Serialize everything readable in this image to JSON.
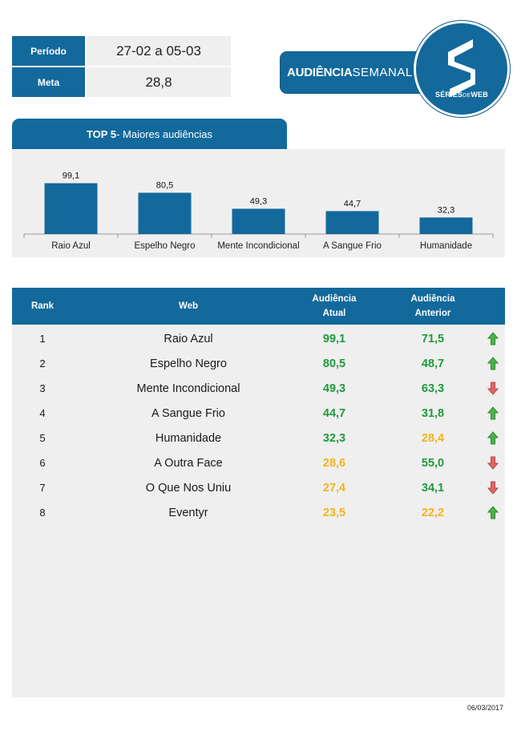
{
  "info": {
    "periodo_label": "Período",
    "periodo_value": "27-02 a 05-03",
    "meta_label": "Meta",
    "meta_value": "28,8"
  },
  "brand": {
    "title_bold": "AUDIÊNCIA",
    "title_thin": "SEMANAL",
    "logo_caption_bold": "SÉRIES",
    "logo_caption_thin": "DE",
    "logo_caption_end": "WEB"
  },
  "top5": {
    "title_bold": "TOP 5",
    "title_rest": " - Maiores audiências"
  },
  "chart_data": {
    "type": "bar",
    "categories": [
      "Raio Azul",
      "Espelho Negro",
      "Mente Incondicional",
      "A Sangue Frio",
      "Humanidade"
    ],
    "values": [
      99.1,
      80.5,
      49.3,
      44.7,
      32.3
    ],
    "value_labels": [
      "99,1",
      "80,5",
      "49,3",
      "44,7",
      "32,3"
    ],
    "title": "",
    "xlabel": "",
    "ylabel": "",
    "ylim": [
      0,
      100
    ],
    "grid": false,
    "bar_color": "#13699b"
  },
  "table": {
    "headers": {
      "rank": "Rank",
      "web": "Web",
      "current_line1": "Audiência",
      "current_line2": "Atual",
      "previous_line1": "Audiência",
      "previous_line2": "Anterior"
    },
    "rows": [
      {
        "rank": "1",
        "web": "Raio Azul",
        "current": "99,1",
        "previous": "71,5",
        "current_color": "green",
        "previous_color": "green",
        "trend": "up"
      },
      {
        "rank": "2",
        "web": "Espelho Negro",
        "current": "80,5",
        "previous": "48,7",
        "current_color": "green",
        "previous_color": "green",
        "trend": "up"
      },
      {
        "rank": "3",
        "web": "Mente Incondicional",
        "current": "49,3",
        "previous": "63,3",
        "current_color": "green",
        "previous_color": "green",
        "trend": "down"
      },
      {
        "rank": "4",
        "web": "A Sangue Frio",
        "current": "44,7",
        "previous": "31,8",
        "current_color": "green",
        "previous_color": "green",
        "trend": "up"
      },
      {
        "rank": "5",
        "web": "Humanidade",
        "current": "32,3",
        "previous": "28,4",
        "current_color": "green",
        "previous_color": "yellow",
        "trend": "up"
      },
      {
        "rank": "6",
        "web": "A Outra Face",
        "current": "28,6",
        "previous": "55,0",
        "current_color": "yellow",
        "previous_color": "green",
        "trend": "down"
      },
      {
        "rank": "7",
        "web": "O Que Nos Uniu",
        "current": "27,4",
        "previous": "34,1",
        "current_color": "yellow",
        "previous_color": "green",
        "trend": "down"
      },
      {
        "rank": "8",
        "web": "Eventyr",
        "current": "23,5",
        "previous": "22,2",
        "current_color": "yellow",
        "previous_color": "yellow",
        "trend": "up"
      }
    ]
  },
  "colors": {
    "primary": "#13699b",
    "panel": "#efefef",
    "green": "#1e9a3c",
    "yellow": "#f2b31b",
    "arrow_up": "#4bb34a",
    "arrow_down": "#e46464"
  },
  "footer": {
    "date": "06/03/2017"
  }
}
